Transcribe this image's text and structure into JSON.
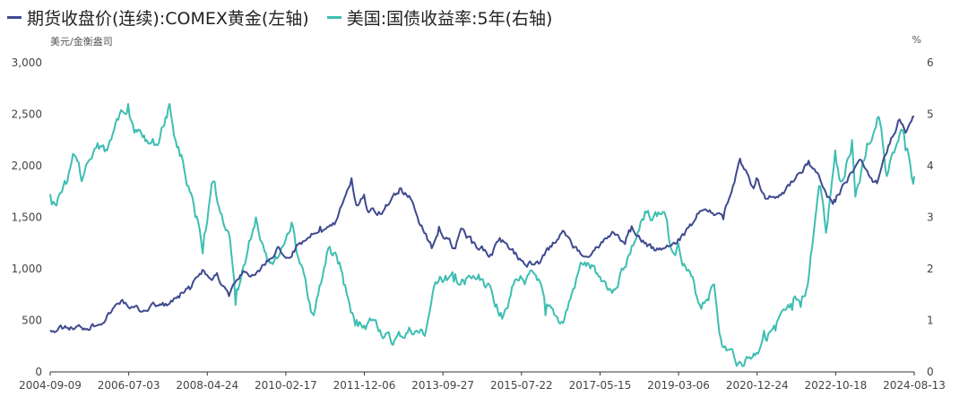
{
  "chart_data": {
    "type": "line",
    "series": [
      {
        "name": "期货收盘价(连续):COMEX黄金(左轴)",
        "axis": "left",
        "color": "#3f4a8f",
        "points": [
          [
            "2004-09-09",
            405
          ],
          [
            "2005-01-01",
            425
          ],
          [
            "2005-06-01",
            430
          ],
          [
            "2005-09-01",
            465
          ],
          [
            "2006-01-01",
            545
          ],
          [
            "2006-05-10",
            700
          ],
          [
            "2006-07-01",
            625
          ],
          [
            "2006-10-01",
            590
          ],
          [
            "2007-01-01",
            640
          ],
          [
            "2007-06-01",
            655
          ],
          [
            "2007-09-01",
            720
          ],
          [
            "2007-12-01",
            800
          ],
          [
            "2008-03-15",
            990
          ],
          [
            "2008-06-01",
            890
          ],
          [
            "2008-07-15",
            960
          ],
          [
            "2008-10-24",
            735
          ],
          [
            "2009-02-20",
            980
          ],
          [
            "2009-06-01",
            940
          ],
          [
            "2009-12-01",
            1200
          ],
          [
            "2010-03-01",
            1110
          ],
          [
            "2010-06-01",
            1240
          ],
          [
            "2010-12-01",
            1410
          ],
          [
            "2011-04-01",
            1430
          ],
          [
            "2011-08-22",
            1880
          ],
          [
            "2011-10-01",
            1620
          ],
          [
            "2011-12-06",
            1720
          ],
          [
            "2012-01-01",
            1570
          ],
          [
            "2012-05-15",
            1560
          ],
          [
            "2012-10-01",
            1780
          ],
          [
            "2013-01-01",
            1680
          ],
          [
            "2013-04-15",
            1380
          ],
          [
            "2013-06-28",
            1200
          ],
          [
            "2013-08-28",
            1410
          ],
          [
            "2013-12-31",
            1200
          ],
          [
            "2014-03-14",
            1390
          ],
          [
            "2014-06-01",
            1250
          ],
          [
            "2014-11-05",
            1140
          ],
          [
            "2015-01-22",
            1300
          ],
          [
            "2015-07-22",
            1080
          ],
          [
            "2015-12-17",
            1050
          ],
          [
            "2016-07-06",
            1370
          ],
          [
            "2016-12-15",
            1130
          ],
          [
            "2017-05-15",
            1230
          ],
          [
            "2017-09-08",
            1350
          ],
          [
            "2017-12-12",
            1240
          ],
          [
            "2018-01-25",
            1360
          ],
          [
            "2018-08-16",
            1180
          ],
          [
            "2019-03-06",
            1290
          ],
          [
            "2019-06-25",
            1420
          ],
          [
            "2019-09-04",
            1560
          ],
          [
            "2019-12-31",
            1520
          ],
          [
            "2020-03-19",
            1480
          ],
          [
            "2020-08-06",
            2070
          ],
          [
            "2020-11-30",
            1780
          ],
          [
            "2020-12-24",
            1880
          ],
          [
            "2021-03-08",
            1680
          ],
          [
            "2021-08-09",
            1730
          ],
          [
            "2022-03-08",
            2050
          ],
          [
            "2022-09-28",
            1630
          ],
          [
            "2022-10-18",
            1650
          ],
          [
            "2023-05-03",
            2050
          ],
          [
            "2023-10-05",
            1830
          ],
          [
            "2023-12-04",
            2090
          ],
          [
            "2024-04-12",
            2450
          ],
          [
            "2024-06-01",
            2320
          ],
          [
            "2024-08-13",
            2480
          ]
        ]
      },
      {
        "name": "美国:国债收益率:5年(右轴)",
        "axis": "right",
        "color": "#3dbeb2",
        "points": [
          [
            "2004-09-09",
            3.45
          ],
          [
            "2004-10-20",
            3.25
          ],
          [
            "2005-02-01",
            3.7
          ],
          [
            "2005-04-01",
            4.2
          ],
          [
            "2005-06-01",
            3.7
          ],
          [
            "2005-08-01",
            4.1
          ],
          [
            "2005-12-01",
            4.4
          ],
          [
            "2006-01-01",
            4.3
          ],
          [
            "2006-03-01",
            4.7
          ],
          [
            "2006-06-28",
            5.2
          ],
          [
            "2006-09-01",
            4.7
          ],
          [
            "2006-12-01",
            4.5
          ],
          [
            "2007-03-01",
            4.4
          ],
          [
            "2007-06-12",
            5.2
          ],
          [
            "2007-08-01",
            4.5
          ],
          [
            "2007-10-01",
            4.1
          ],
          [
            "2008-01-15",
            3.0
          ],
          [
            "2008-03-17",
            2.3
          ],
          [
            "2008-06-13",
            3.7
          ],
          [
            "2008-08-01",
            3.2
          ],
          [
            "2008-11-01",
            2.6
          ],
          [
            "2008-12-18",
            1.3
          ],
          [
            "2009-02-01",
            1.8
          ],
          [
            "2009-06-08",
            3.0
          ],
          [
            "2009-09-01",
            2.3
          ],
          [
            "2009-12-01",
            2.2
          ],
          [
            "2010-04-05",
            2.9
          ],
          [
            "2010-06-01",
            2.2
          ],
          [
            "2010-10-08",
            1.1
          ],
          [
            "2011-02-08",
            2.4
          ],
          [
            "2011-05-01",
            2.1
          ],
          [
            "2011-09-22",
            0.9
          ],
          [
            "2011-12-06",
            0.9
          ],
          [
            "2012-03-01",
            1.0
          ],
          [
            "2012-07-24",
            0.55
          ],
          [
            "2013-01-01",
            0.8
          ],
          [
            "2013-05-01",
            0.7
          ],
          [
            "2013-06-24",
            1.35
          ],
          [
            "2013-09-05",
            1.85
          ],
          [
            "2013-12-31",
            1.75
          ],
          [
            "2014-04-01",
            1.7
          ],
          [
            "2014-09-01",
            1.8
          ],
          [
            "2015-01-30",
            1.15
          ],
          [
            "2015-06-10",
            1.8
          ],
          [
            "2015-12-15",
            1.8
          ],
          [
            "2016-02-11",
            1.1
          ],
          [
            "2016-07-08",
            0.95
          ],
          [
            "2016-12-15",
            2.1
          ],
          [
            "2017-05-15",
            1.85
          ],
          [
            "2017-09-07",
            1.6
          ],
          [
            "2017-12-31",
            2.2
          ],
          [
            "2018-05-17",
            2.95
          ],
          [
            "2018-11-08",
            3.1
          ],
          [
            "2019-01-03",
            2.4
          ],
          [
            "2019-03-06",
            2.5
          ],
          [
            "2019-09-03",
            1.3
          ],
          [
            "2020-01-01",
            1.7
          ],
          [
            "2020-03-09",
            0.5
          ],
          [
            "2020-08-04",
            0.2
          ],
          [
            "2020-12-24",
            0.37
          ],
          [
            "2021-02-25",
            0.8
          ],
          [
            "2021-06-01",
            0.8
          ],
          [
            "2021-10-20",
            1.2
          ],
          [
            "2021-12-31",
            1.26
          ],
          [
            "2022-03-01",
            1.7
          ],
          [
            "2022-05-01",
            2.95
          ],
          [
            "2022-06-14",
            3.6
          ],
          [
            "2022-08-01",
            2.7
          ],
          [
            "2022-10-18",
            4.3
          ],
          [
            "2022-12-01",
            3.7
          ],
          [
            "2023-03-08",
            4.5
          ],
          [
            "2023-04-05",
            3.4
          ],
          [
            "2023-07-01",
            4.2
          ],
          [
            "2023-10-19",
            4.95
          ],
          [
            "2023-12-27",
            3.8
          ],
          [
            "2024-04-25",
            4.7
          ],
          [
            "2024-06-01",
            4.3
          ],
          [
            "2024-08-05",
            3.65
          ],
          [
            "2024-08-13",
            3.8
          ]
        ]
      }
    ],
    "x_tick_labels": [
      "2004-09-09",
      "2006-07-03",
      "2008-04-24",
      "2010-02-17",
      "2011-12-06",
      "2013-09-27",
      "2015-07-22",
      "2017-05-15",
      "2019-03-06",
      "2020-12-24",
      "2022-10-18",
      "2024-08-13"
    ],
    "x_range": [
      "2004-09-09",
      "2024-08-13"
    ],
    "y_left": {
      "unit": "美元/金衡盎司",
      "ylim": [
        0,
        3000
      ],
      "tick_labels": [
        "0",
        "500",
        "1,000",
        "1,500",
        "2,000",
        "2,500",
        "3,000"
      ]
    },
    "y_right": {
      "unit": "%",
      "ylim": [
        0,
        6
      ],
      "tick_labels": [
        "0",
        "1",
        "2",
        "3",
        "4",
        "5",
        "6"
      ]
    },
    "grid": false,
    "legend_position": "top-left"
  }
}
